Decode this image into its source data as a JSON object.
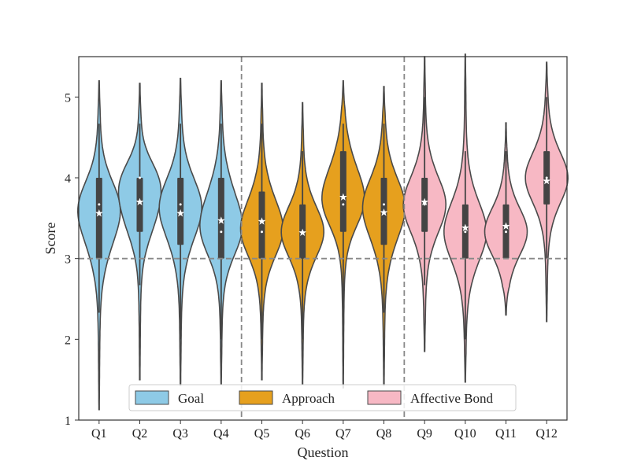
{
  "chart_data": {
    "type": "violin",
    "title": "",
    "xlabel": "Question",
    "ylabel": "Score",
    "ylim": [
      1,
      5.5
    ],
    "yticks": [
      1,
      2,
      3,
      4,
      5
    ],
    "categories": [
      "Q1",
      "Q2",
      "Q3",
      "Q4",
      "Q5",
      "Q6",
      "Q7",
      "Q8",
      "Q9",
      "Q10",
      "Q11",
      "Q12"
    ],
    "reference_line_y": 3,
    "group_separators_after": [
      "Q4",
      "Q8"
    ],
    "groups": [
      {
        "name": "Goal",
        "color": "#8ecae6",
        "questions": [
          "Q1",
          "Q2",
          "Q3",
          "Q4"
        ]
      },
      {
        "name": "Approach",
        "color": "#e6a01e",
        "questions": [
          "Q5",
          "Q6",
          "Q7",
          "Q8"
        ]
      },
      {
        "name": "Affective Bond",
        "color": "#f7b8c4",
        "questions": [
          "Q9",
          "Q10",
          "Q11",
          "Q12"
        ]
      }
    ],
    "violins": [
      {
        "q": "Q1",
        "min": 1.13,
        "max": 5.2,
        "whisker_lo": 2.33,
        "whisker_hi": 4.67,
        "q1": 3.0,
        "q3": 4.0,
        "median": 3.67,
        "mean": 3.56,
        "bw": 0.35
      },
      {
        "q": "Q2",
        "min": 1.5,
        "max": 5.17,
        "whisker_lo": 2.67,
        "whisker_hi": 4.67,
        "q1": 3.33,
        "q3": 4.0,
        "median": 4.0,
        "mean": 3.7,
        "bw": 0.3
      },
      {
        "q": "Q3",
        "min": 1.43,
        "max": 5.23,
        "whisker_lo": 2.0,
        "whisker_hi": 4.67,
        "q1": 3.17,
        "q3": 4.0,
        "median": 3.67,
        "mean": 3.56,
        "bw": 0.35
      },
      {
        "q": "Q4",
        "min": 1.45,
        "max": 5.2,
        "whisker_lo": 2.0,
        "whisker_hi": 4.67,
        "q1": 3.0,
        "q3": 4.0,
        "median": 3.33,
        "mean": 3.47,
        "bw": 0.35
      },
      {
        "q": "Q5",
        "min": 1.5,
        "max": 5.17,
        "whisker_lo": 2.0,
        "whisker_hi": 4.67,
        "q1": 3.0,
        "q3": 3.83,
        "median": 3.33,
        "mean": 3.46,
        "bw": 0.33
      },
      {
        "q": "Q6",
        "min": 1.45,
        "max": 4.93,
        "whisker_lo": 2.0,
        "whisker_hi": 4.33,
        "q1": 3.0,
        "q3": 3.67,
        "median": 3.33,
        "mean": 3.32,
        "bw": 0.3
      },
      {
        "q": "Q7",
        "min": 1.4,
        "max": 5.2,
        "whisker_lo": 1.67,
        "whisker_hi": 4.67,
        "q1": 3.33,
        "q3": 4.33,
        "median": 3.67,
        "mean": 3.76,
        "bw": 0.33
      },
      {
        "q": "Q8",
        "min": 1.43,
        "max": 5.13,
        "whisker_lo": 2.33,
        "whisker_hi": 4.67,
        "q1": 3.17,
        "q3": 4.0,
        "median": 3.67,
        "mean": 3.57,
        "bw": 0.35
      },
      {
        "q": "Q9",
        "min": 1.85,
        "max": 5.5,
        "whisker_lo": 2.67,
        "whisker_hi": 5.0,
        "q1": 3.33,
        "q3": 4.0,
        "median": 3.67,
        "mean": 3.7,
        "bw": 0.33
      },
      {
        "q": "Q10",
        "min": 1.47,
        "max": 5.53,
        "whisker_lo": 2.0,
        "whisker_hi": 4.33,
        "q1": 3.0,
        "q3": 3.67,
        "median": 3.33,
        "mean": 3.38,
        "bw": 0.35
      },
      {
        "q": "Q11",
        "min": 2.3,
        "max": 4.68,
        "whisker_lo": 3.0,
        "whisker_hi": 4.33,
        "q1": 3.0,
        "q3": 3.67,
        "median": 3.33,
        "mean": 3.4,
        "bw": 0.28
      },
      {
        "q": "Q12",
        "min": 2.22,
        "max": 5.43,
        "whisker_lo": 3.0,
        "whisker_hi": 5.0,
        "q1": 3.67,
        "q3": 4.33,
        "median": 4.0,
        "mean": 3.96,
        "bw": 0.3
      }
    ],
    "legend": {
      "placement": "bottom-center",
      "entries": [
        "Goal",
        "Approach",
        "Affective Bond"
      ]
    }
  }
}
